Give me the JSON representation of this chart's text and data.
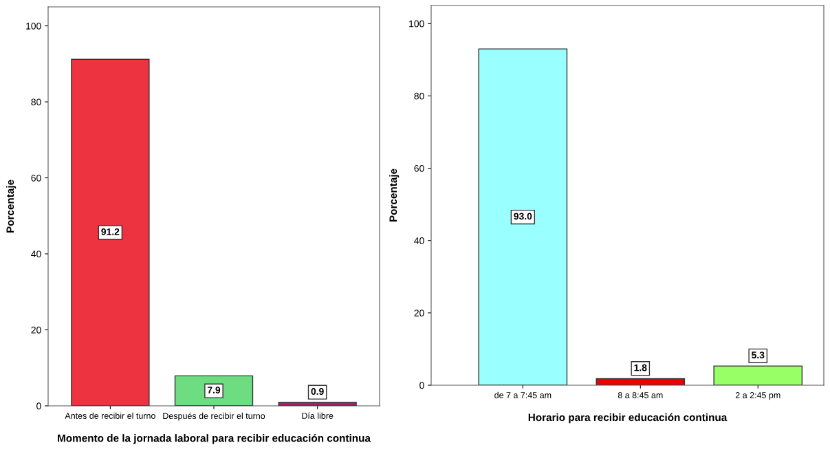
{
  "chart_data": [
    {
      "type": "bar",
      "xlabel": "Momento de la jornada laboral para recibir educación continua",
      "ylabel": "Porcentaje",
      "categories": [
        "Antes de recibir el turno",
        "Después de recibir el turno",
        "Día libre"
      ],
      "values": [
        91.2,
        7.9,
        0.9
      ],
      "value_labels": [
        "91.2",
        "7.9",
        "0.9"
      ],
      "colors": [
        "#ee3340",
        "#6edc80",
        "#a0206a"
      ],
      "ylim": [
        0,
        105
      ],
      "yticks": [
        0,
        20,
        40,
        60,
        80,
        100
      ],
      "grid": false,
      "legend": false
    },
    {
      "type": "bar",
      "xlabel": "Horario para recibir educación continua",
      "ylabel": "Porcentaje",
      "categories": [
        "de 7 a 7:45 am",
        "8 a 8:45 am",
        "2 a 2:45 pm"
      ],
      "values": [
        93.0,
        1.8,
        5.3
      ],
      "value_labels": [
        "93.0",
        "1.8",
        "5.3"
      ],
      "colors": [
        "#99ffff",
        "#ee0000",
        "#99ff66"
      ],
      "ylim": [
        0,
        105
      ],
      "yticks": [
        0,
        20,
        40,
        60,
        80,
        100
      ],
      "grid": false,
      "legend": false
    }
  ]
}
